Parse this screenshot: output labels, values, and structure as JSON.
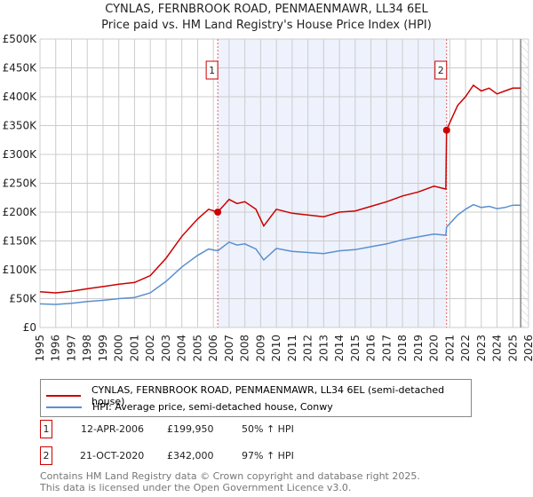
{
  "chart_data": {
    "type": "line",
    "title": "CYNLAS, FERNBROOK ROAD, PENMAENMAWR, LL34 6EL",
    "subtitle": "Price paid vs. HM Land Registry's House Price Index (HPI)",
    "xlim": [
      1995,
      2026
    ],
    "ylim": [
      0,
      500000
    ],
    "y_ticks": [
      {
        "v": 0,
        "label": "£0"
      },
      {
        "v": 50000,
        "label": "£50K"
      },
      {
        "v": 100000,
        "label": "£100K"
      },
      {
        "v": 150000,
        "label": "£150K"
      },
      {
        "v": 200000,
        "label": "£200K"
      },
      {
        "v": 250000,
        "label": "£250K"
      },
      {
        "v": 300000,
        "label": "£300K"
      },
      {
        "v": 350000,
        "label": "£350K"
      },
      {
        "v": 400000,
        "label": "£400K"
      },
      {
        "v": 450000,
        "label": "£450K"
      },
      {
        "v": 500000,
        "label": "£500K"
      }
    ],
    "x_ticks": [
      "1995",
      "1996",
      "1997",
      "1998",
      "1999",
      "2000",
      "2001",
      "2002",
      "2003",
      "2004",
      "2005",
      "2006",
      "2007",
      "2008",
      "2009",
      "2010",
      "2011",
      "2012",
      "2013",
      "2014",
      "2015",
      "2016",
      "2017",
      "2018",
      "2019",
      "2020",
      "2021",
      "2022",
      "2023",
      "2024",
      "2025",
      "2026"
    ],
    "grid": true,
    "series": [
      {
        "name": "CYNLAS, FERNBROOK ROAD, PENMAENMAWR, LL34 6EL (semi-detached house)",
        "color": "#cc0000",
        "x": [
          1995,
          1996,
          1997,
          1998,
          1999,
          2000,
          2001,
          2002,
          2003,
          2004,
          2005,
          2005.7,
          2006.28,
          2007,
          2007.5,
          2008,
          2008.7,
          2009.2,
          2010,
          2011,
          2012,
          2013,
          2014,
          2015,
          2016,
          2017,
          2018,
          2019,
          2020,
          2020.75,
          2020.8,
          2021,
          2021.5,
          2022,
          2022.5,
          2023,
          2023.5,
          2024,
          2024.5,
          2025,
          2025.5
        ],
        "y": [
          62000,
          60000,
          63000,
          67000,
          71000,
          75000,
          78000,
          90000,
          120000,
          158000,
          188000,
          205000,
          199950,
          222000,
          215000,
          218000,
          205000,
          176000,
          205000,
          198000,
          195000,
          192000,
          200000,
          202000,
          210000,
          218000,
          228000,
          235000,
          245000,
          240000,
          342000,
          355000,
          385000,
          400000,
          420000,
          410000,
          415000,
          405000,
          410000,
          415000,
          415000
        ]
      },
      {
        "name": "HPI: Average price, semi-detached house, Conwy",
        "color": "#5b8fd0",
        "x": [
          1995,
          1996,
          1997,
          1998,
          1999,
          2000,
          2001,
          2002,
          2003,
          2004,
          2005,
          2005.7,
          2006.28,
          2007,
          2007.5,
          2008,
          2008.7,
          2009.2,
          2010,
          2011,
          2012,
          2013,
          2014,
          2015,
          2016,
          2017,
          2018,
          2019,
          2020,
          2020.75,
          2020.8,
          2021,
          2021.5,
          2022,
          2022.5,
          2023,
          2023.5,
          2024,
          2024.5,
          2025,
          2025.5
        ],
        "y": [
          41000,
          40000,
          42000,
          45000,
          47000,
          50000,
          52000,
          60000,
          80000,
          105000,
          125000,
          136000,
          133000,
          148000,
          143000,
          145000,
          136000,
          117000,
          137000,
          132000,
          130000,
          128000,
          133000,
          135000,
          140000,
          145000,
          152000,
          157000,
          162000,
          160000,
          174000,
          180000,
          195000,
          205000,
          213000,
          208000,
          210000,
          206000,
          208000,
          212000,
          212000
        ]
      }
    ],
    "sales": [
      {
        "x": 2006.28,
        "y": 199950,
        "label": "1"
      },
      {
        "x": 2020.8,
        "y": 342000,
        "label": "2"
      }
    ],
    "shaded_region": [
      2006.28,
      2020.8
    ],
    "forecast_from": 2025.5
  },
  "legend": {
    "red": "CYNLAS, FERNBROOK ROAD, PENMAENMAWR, LL34 6EL (semi-detached house)",
    "blue": "HPI: Average price, semi-detached house, Conwy"
  },
  "transactions": [
    {
      "num": "1",
      "date": "12-APR-2006",
      "price": "£199,950",
      "hpi": "50% ↑ HPI"
    },
    {
      "num": "2",
      "date": "21-OCT-2020",
      "price": "£342,000",
      "hpi": "97% ↑ HPI"
    }
  ],
  "footer": {
    "line1": "Contains HM Land Registry data © Crown copyright and database right 2025.",
    "line2": "This data is licensed under the Open Government Licence v3.0."
  }
}
